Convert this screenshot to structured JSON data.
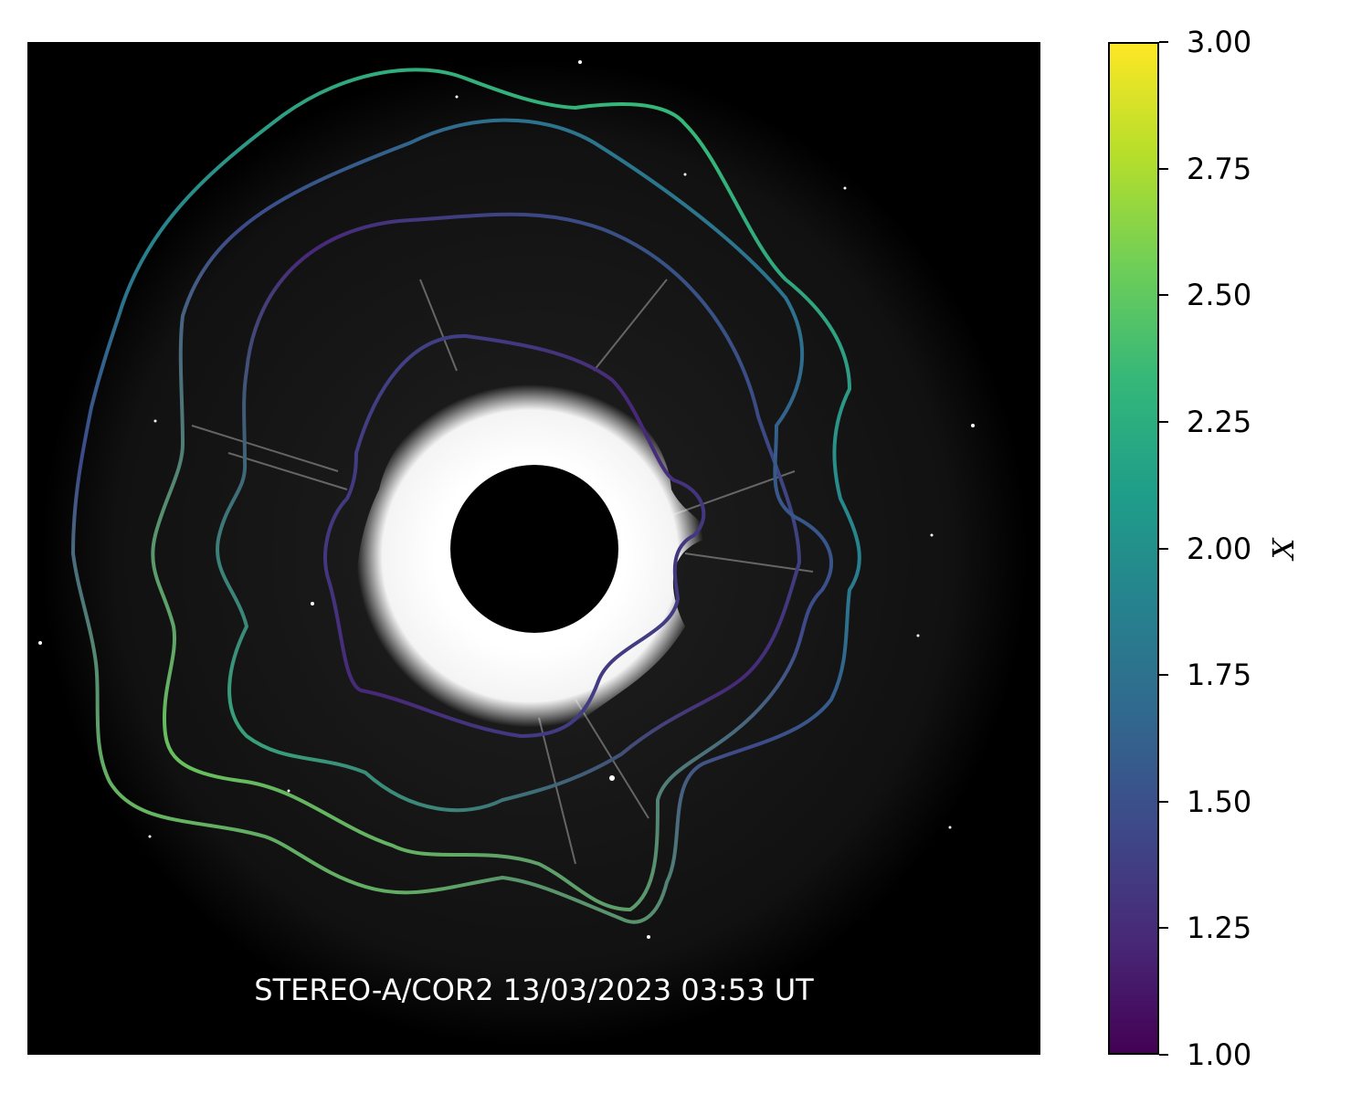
{
  "image": {
    "caption": "STEREO-A/COR2 13/03/2023 03:53 UT",
    "background": "#000000",
    "occulter": "black-disc",
    "corona_color": "#ffffff"
  },
  "colorbar": {
    "label": "X",
    "min": 1.0,
    "max": 3.0,
    "ticks": [
      "1.00",
      "1.25",
      "1.50",
      "1.75",
      "2.00",
      "2.25",
      "2.50",
      "2.75",
      "3.00"
    ],
    "colormap": "viridis",
    "colors": [
      "#440154",
      "#482878",
      "#3e4989",
      "#31688e",
      "#26828e",
      "#1f9e89",
      "#35b779",
      "#6ece58",
      "#b5de2b",
      "#fde725"
    ]
  },
  "contours": [
    {
      "id": "contour-1",
      "color_values": [
        1.45,
        1.3,
        1.25,
        1.35,
        1.45
      ]
    },
    {
      "id": "contour-2",
      "color_values": [
        1.65,
        1.4,
        1.3,
        1.5,
        2.2
      ]
    },
    {
      "id": "contour-3",
      "color_values": [
        2.05,
        1.75,
        1.4,
        1.65,
        2.65
      ]
    },
    {
      "id": "contour-4",
      "color_values": [
        2.55,
        1.8,
        1.45,
        1.6,
        2.6
      ]
    }
  ]
}
